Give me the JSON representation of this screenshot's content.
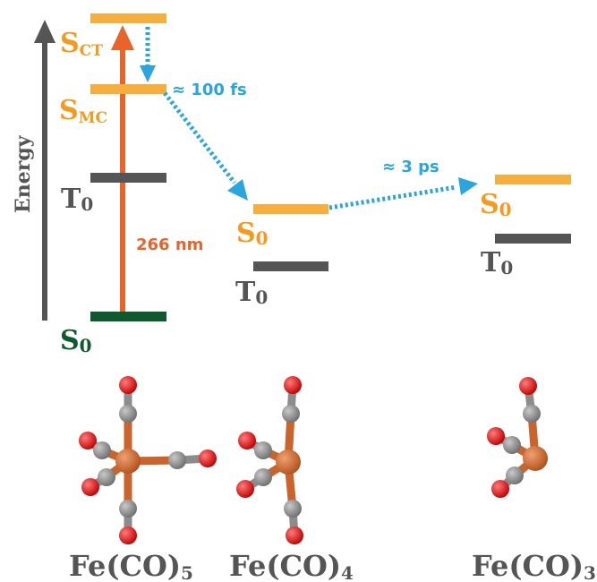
{
  "axis": {
    "label": "Energy"
  },
  "colors": {
    "orange_level": "#f6ae3c",
    "dark_level": "#555555",
    "ground_level": "#0e5a2e",
    "excitation": "#e8642b",
    "process": "#29a6e0",
    "label_orange": "#f39a1f",
    "label_gray": "#555555",
    "label_green": "#0e5a2e",
    "atom_fe": "#c8642c",
    "atom_c": "#8c8c8c",
    "atom_o": "#e01818"
  },
  "states": {
    "s_ct": {
      "main": "S",
      "sub": "CT"
    },
    "s_mc": {
      "main": "S",
      "sub": "MC"
    },
    "t0_a": {
      "main": "T",
      "sub": "0"
    },
    "s0_ground": {
      "main": "S",
      "sub": "0"
    },
    "s0_b": {
      "main": "S",
      "sub": "0"
    },
    "t0_b": {
      "main": "T",
      "sub": "0"
    },
    "s0_c": {
      "main": "S",
      "sub": "0"
    },
    "t0_c": {
      "main": "T",
      "sub": "0"
    }
  },
  "annotations": {
    "excitation": "266 nm",
    "fast": "≈ 100 fs",
    "slow": "≈ 3 ps"
  },
  "molecules": [
    {
      "base": "Fe(CO)",
      "sub": "5",
      "icon": "fe-co-5-structure"
    },
    {
      "base": "Fe(CO)",
      "sub": "4",
      "icon": "fe-co-4-structure"
    },
    {
      "base": "Fe(CO)",
      "sub": "3",
      "icon": "fe-co-3-structure"
    }
  ]
}
